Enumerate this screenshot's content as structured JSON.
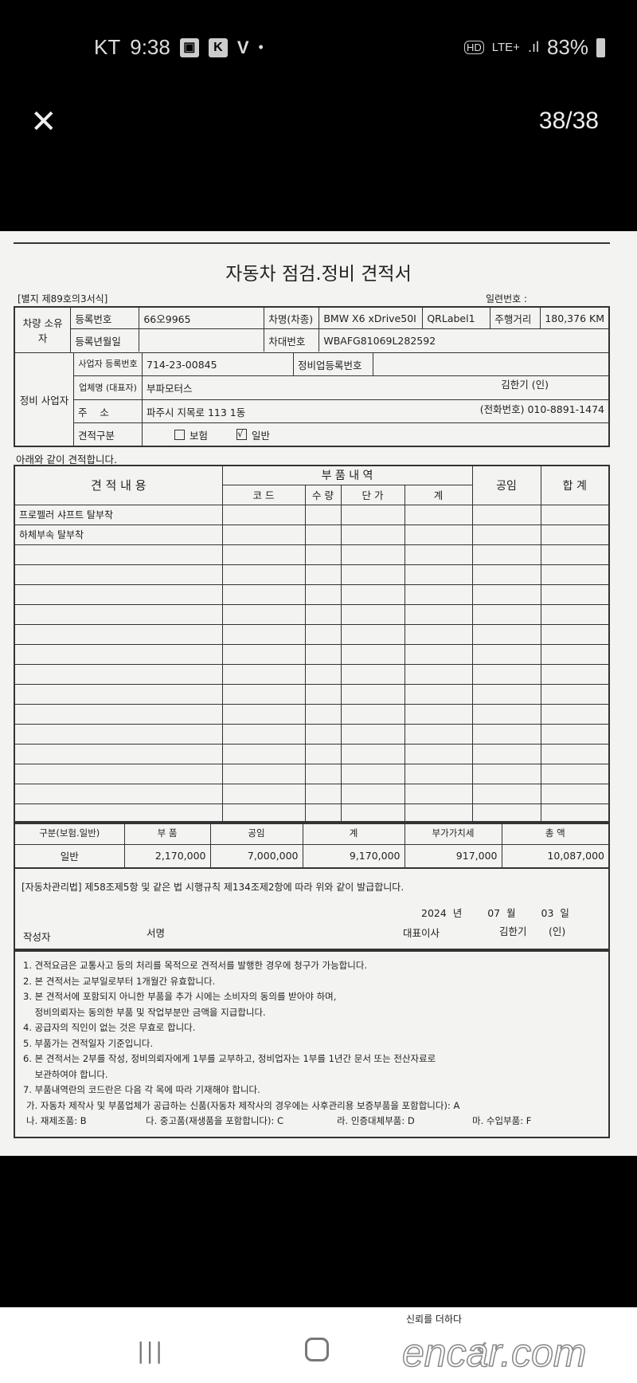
{
  "status_bar": {
    "carrier": "KT",
    "time": "9:38",
    "battery": "83%",
    "network": "LTE+",
    "hd": "HD",
    "icons": [
      "gallery-icon",
      "k-app-icon",
      "v-app-icon",
      "dot-icon",
      "hd-voice-icon",
      "signal-icon",
      "battery-icon"
    ]
  },
  "viewer": {
    "counter": "38/38",
    "close_icon": "close-icon"
  },
  "doc": {
    "title": "자동차 점검.정비 견적서",
    "form_no": "[별지 제89호의3서식]",
    "serial_label": "일련번호 :",
    "owner": {
      "section": "차량 소유자",
      "reg_no_label": "등록번호",
      "reg_no": "66오9965",
      "model_label": "차명(차종)",
      "model": "BMW X6 xDrive50I",
      "qr": "QRLabel1",
      "mileage_label": "주행거리",
      "mileage": "180,376 KM",
      "reg_date_label": "등록년월일",
      "reg_date": "",
      "vin_label": "차대번호",
      "vin": "WBAFG81069L282592"
    },
    "shop": {
      "section": "정비 사업자",
      "biz_no_label": "사업자 등록번호",
      "biz_no": "714-23-00845",
      "shop_reg_label": "정비업등록번호",
      "shop_reg": "",
      "name_label": "업체명 (대표자)",
      "name": "부파모터스",
      "rep": "김한기 (인)",
      "addr_label": "주    소",
      "addr": "파주시 지목로 113 1동",
      "phone_label": "(전화번호)",
      "phone": "010-8891-1474",
      "type_label": "견적구분",
      "opt_insurance": "보험",
      "opt_general": "일반",
      "insurance_checked": false,
      "general_checked": true
    }
  },
  "quote": {
    "intro": "아래와 같이 견적합니다.",
    "h_content": "견  적  내  용",
    "h_parts": "부   품   내   역",
    "h_code": "코 드",
    "h_qty": "수 량",
    "h_price": "단 가",
    "h_sum": "계",
    "h_labor": "공임",
    "h_total": "합 계",
    "rows": [
      {
        "item": "프로펠러 샤프트 탈부착"
      },
      {
        "item": "하체부속 탈부착"
      }
    ]
  },
  "summary": {
    "headers": [
      "구분(보험.일반)",
      "부   품",
      "공임",
      "계",
      "부가가치세",
      "총   액"
    ],
    "values": [
      "일반",
      "2,170,000",
      "7,000,000",
      "9,170,000",
      "917,000",
      "10,087,000"
    ]
  },
  "statement": {
    "text": "[자동차관리법]  제58조제5항 및 같은 법 시행규칙 제134조제2항에 따라 위와 같이 발급합니다.",
    "year": "2024",
    "year_u": "년",
    "month": "07",
    "month_u": "월",
    "day": "03",
    "day_u": "일",
    "writer_label": "작성자",
    "sign_label": "서명",
    "ceo_label": "대표이사",
    "ceo": "김한기",
    "seal": "(인)"
  },
  "notes": [
    "1. 견적요금은 교통사고 등의 처리를 목적으로 견적서를 발행한 경우에 청구가 가능합니다.",
    "2. 본 견적서는 교부일로부터 1개월간 유효합니다.",
    "3. 본 견적서에 포함되지 아니한 부품을 추가 시에는 소비자의 동의를 받아야 하며,",
    "    정비의뢰자는 동의한 부품 및 작업부분만 금액을 지급합니다.",
    "4. 공급자의 직인이 없는 것은 무효로 합니다.",
    "5. 부품가는 견적일자 기준입니다.",
    "6. 본 견적서는 2부를 작성, 정비의뢰자에게 1부를 교부하고, 정비업자는 1부를 1년간 문서 또는 전산자료로",
    "    보관하여야 합니다.",
    "7. 부품내역란의 코드란은 다음 각 목에 따라 기재해야 합니다."
  ],
  "codes": {
    "a": "가. 자동차 제작사 및 부품업체가 공급하는 신품(자동차 제작사의 경우에는 사후관리용 보증부품을 포함합니다): A",
    "b": "나. 재제조품: B",
    "c": "다. 중고품(재생품을 포함합니다): C",
    "d": "라. 인증대체부품: D",
    "f": "마. 수입부품: F"
  },
  "watermark": {
    "tagline": "신뢰를 더하다",
    "brand": "encar.com"
  },
  "nav": {
    "icons": [
      "recent-apps-icon",
      "home-icon",
      "back-icon"
    ]
  }
}
